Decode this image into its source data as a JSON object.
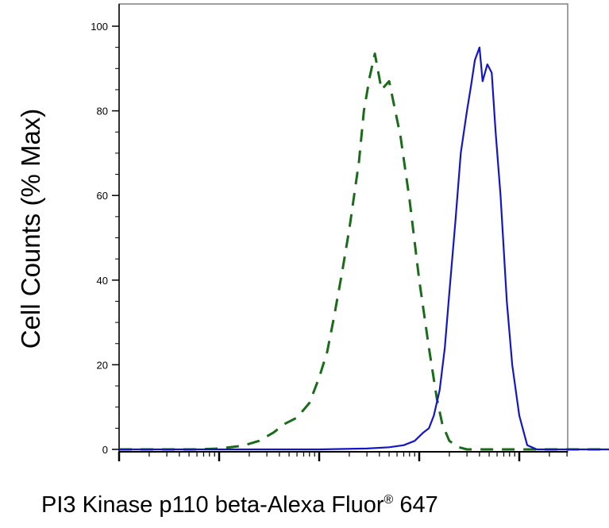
{
  "chart_data": {
    "type": "line",
    "title": "",
    "xlabel": "PI3 Kinase p110 beta-Alexa Fluor",
    "xlabel_superscript": "®",
    "xlabel_suffix": " 647",
    "ylabel": "Cell Counts (% Max)",
    "x_scale": "log",
    "xlim": [
      1,
      100000
    ],
    "ylim": [
      0,
      100
    ],
    "y_ticks": [
      0,
      20,
      40,
      60,
      80,
      100
    ],
    "y_tick_labels": [
      "0",
      "20",
      "40",
      "60",
      "80",
      "100"
    ],
    "grid": false,
    "legend": "none",
    "series": [
      {
        "style": "dashed",
        "color": "#1a6b1a",
        "x": [
          1,
          3,
          6,
          10,
          15,
          18,
          25,
          35,
          45,
          60,
          80,
          100,
          120,
          140,
          170,
          200,
          250,
          280,
          320,
          360,
          420,
          500,
          650,
          800,
          1000,
          1250,
          1500,
          1700,
          2000,
          2500,
          3000,
          3500,
          4000,
          5000,
          6500,
          8000,
          10000,
          20000,
          50000,
          100000
        ],
        "y": [
          0,
          0,
          0,
          0.2,
          0.7,
          1,
          2,
          4,
          6,
          7.5,
          11,
          17,
          23,
          31,
          42,
          52,
          68,
          80,
          88,
          93.5,
          85,
          87,
          74,
          59,
          40,
          24,
          12,
          6,
          2,
          0.5,
          0,
          0,
          0,
          0,
          0,
          0,
          0,
          0,
          0,
          0
        ]
      },
      {
        "style": "solid",
        "color": "#1515c8",
        "x": [
          1,
          100,
          300,
          500,
          700,
          900,
          1100,
          1250,
          1400,
          1600,
          1800,
          2000,
          2300,
          2600,
          3000,
          3300,
          3600,
          4000,
          4300,
          4800,
          5300,
          5800,
          6500,
          7500,
          8500,
          10000,
          12000,
          15000,
          20000,
          50000,
          100000
        ],
        "y": [
          0,
          0,
          0.2,
          0.5,
          1,
          2,
          4,
          5,
          8,
          14,
          24,
          37,
          54,
          70,
          80,
          86,
          92,
          95,
          87,
          91,
          89,
          75,
          60,
          35,
          20,
          8,
          1,
          0,
          0,
          0,
          0
        ]
      }
    ]
  }
}
